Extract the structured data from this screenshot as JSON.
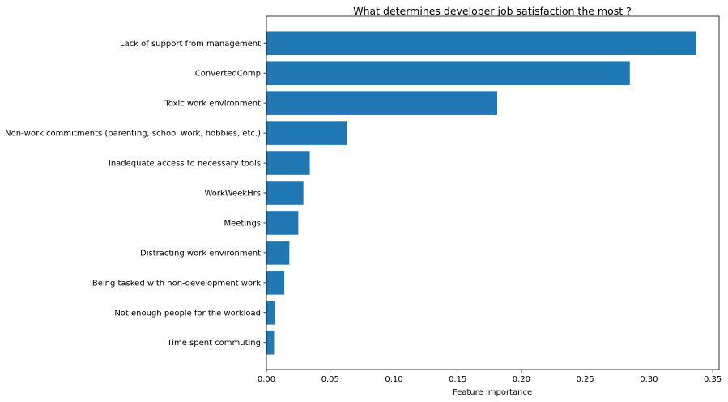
{
  "chart_data": {
    "type": "bar",
    "orientation": "horizontal",
    "title": "What determines developer job satisfaction the most ?",
    "xlabel": "Feature Importance",
    "ylabel": "",
    "xlim": [
      0,
      0.355
    ],
    "xticks": [
      "0.00",
      "0.05",
      "0.10",
      "0.15",
      "0.20",
      "0.25",
      "0.30",
      "0.35"
    ],
    "xtick_values": [
      0,
      0.05,
      0.1,
      0.15,
      0.2,
      0.25,
      0.3,
      0.35
    ],
    "grid": false,
    "bar_color": "#1f77b4",
    "categories": [
      "Lack of support from management",
      "ConvertedComp",
      "Toxic work environment",
      "Non-work commitments (parenting, school work, hobbies, etc.)",
      "Inadequate access to necessary tools",
      "WorkWeekHrs",
      "Meetings",
      "Distracting work environment",
      "Being tasked with non-development work",
      "Not enough people for the workload",
      "Time spent commuting"
    ],
    "values": [
      0.337,
      0.285,
      0.181,
      0.063,
      0.034,
      0.029,
      0.025,
      0.018,
      0.014,
      0.007,
      0.006
    ]
  }
}
